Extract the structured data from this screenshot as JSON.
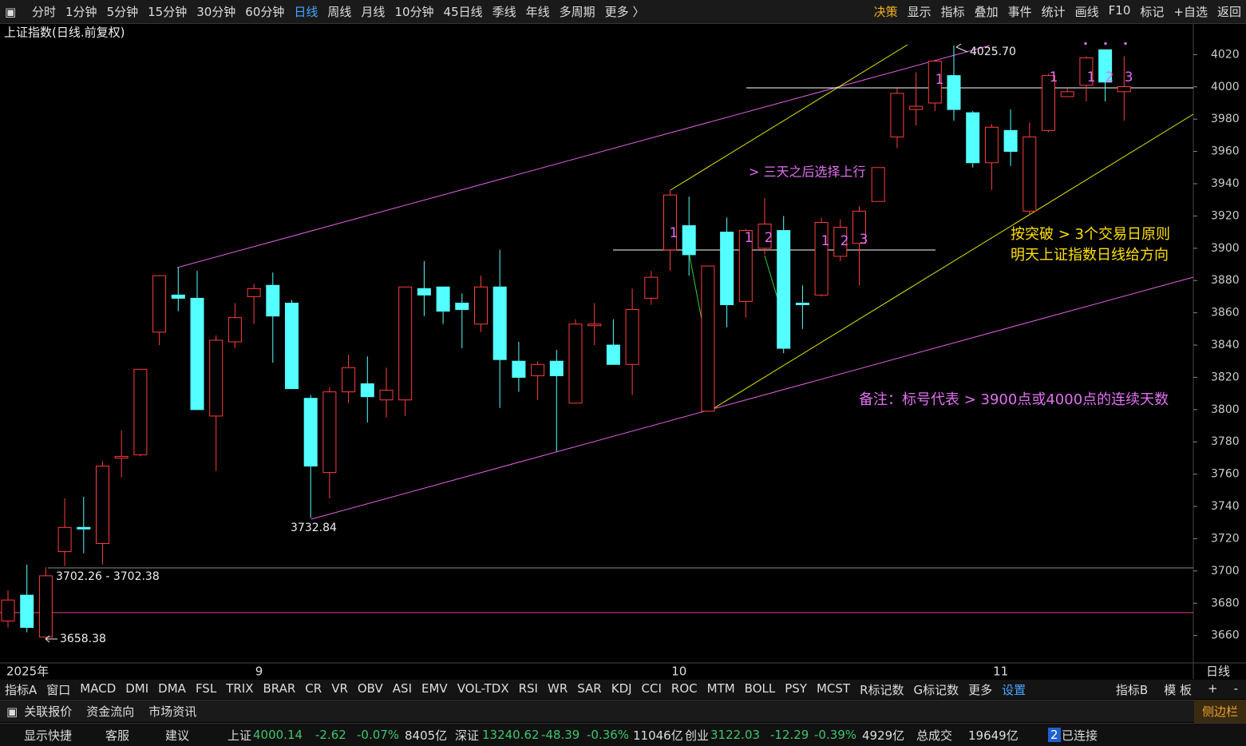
{
  "toolbar": {
    "periods": [
      "分时",
      "1分钟",
      "5分钟",
      "15分钟",
      "30分钟",
      "60分钟",
      "日线",
      "周线",
      "月线",
      "10分钟",
      "45日线",
      "季线",
      "年线",
      "多周期",
      "更多 〉"
    ],
    "right": [
      "决策",
      "显示",
      "指标",
      "叠加",
      "事件",
      "统计",
      "画线",
      "F10",
      "标记",
      "+自选",
      "返回"
    ]
  },
  "chart_header": "上证指数(日线.前复权)",
  "chart_data": {
    "type": "candlestick",
    "axis_label": "日线",
    "categories": [
      "2025年",
      null,
      null,
      null,
      null,
      null,
      null,
      null,
      null,
      null,
      null,
      null,
      null,
      null,
      "9",
      null,
      null,
      null,
      null,
      null,
      null,
      null,
      null,
      null,
      null,
      null,
      null,
      null,
      null,
      null,
      null,
      null,
      null,
      null,
      null,
      null,
      "10",
      null,
      null,
      null,
      null,
      null,
      null,
      null,
      null,
      null,
      null,
      null,
      null,
      null,
      null,
      null,
      null,
      "11",
      null,
      null,
      null,
      null,
      null,
      null
    ],
    "open": [
      3669,
      3685,
      3659,
      3712,
      3727,
      3717,
      3770,
      3772,
      3848,
      3871,
      3869,
      3796,
      3842,
      3870,
      3877,
      3866,
      3807,
      3761,
      3811,
      3816,
      3806,
      3806,
      3875,
      3876,
      3866,
      3853,
      3876,
      3830,
      3821,
      3830,
      3804,
      3852,
      3840,
      3828,
      3869,
      3899,
      3914,
      3799,
      3910,
      3867,
      3900,
      3911,
      3866,
      3871,
      3895,
      3903,
      3929,
      3969,
      3986,
      3990,
      4007,
      3984,
      3953,
      3973,
      3923,
      3973,
      3994,
      4001,
      4023,
      3997
    ],
    "high": [
      3688,
      3704,
      3702.38,
      3745,
      3746,
      3768,
      3787,
      3825,
      3883,
      3888,
      3886,
      3846,
      3866,
      3878,
      3885,
      3868,
      3809,
      3814,
      3834,
      3833,
      3826,
      3876,
      3892,
      3876,
      3872,
      3883,
      3899,
      3842,
      3830,
      3837,
      3856,
      3866,
      3856,
      3875,
      3886,
      3936,
      3932,
      3889,
      3919,
      3912,
      3931,
      3920,
      3877,
      3919,
      3918,
      3926,
      3950,
      3999,
      4009,
      4016,
      4025.7,
      3985,
      3977,
      3986,
      3978,
      4008,
      3999,
      4019,
      4023,
      4019
    ],
    "low": [
      3665,
      3662,
      3658.38,
      3703,
      3711,
      3704,
      3758,
      3771,
      3840,
      3861,
      3800,
      3762,
      3838,
      3853,
      3829,
      3813,
      3732.84,
      3745,
      3804,
      3792,
      3795,
      3796,
      3858,
      3853,
      3838,
      3848,
      3801,
      3811,
      3806,
      3774,
      3804,
      3840,
      3828,
      3809,
      3865,
      3886,
      3883,
      3799,
      3851,
      3857,
      3896,
      3835,
      3850,
      3870,
      3892,
      3877,
      3929,
      3962,
      3976,
      3985,
      3979,
      3950,
      3936,
      3951,
      3921,
      3972,
      3994,
      3991,
      3991,
      3979
    ],
    "close": [
      3682,
      3665,
      3697,
      3727,
      3726,
      3765,
      3771,
      3825,
      3883,
      3869,
      3800,
      3843,
      3857,
      3875,
      3858,
      3813,
      3765,
      3811,
      3826,
      3808,
      3812,
      3876,
      3871,
      3861,
      3862,
      3876,
      3831,
      3820,
      3828,
      3821,
      3853,
      3853,
      3828,
      3862,
      3882,
      3933,
      3896,
      3889,
      3865,
      3911,
      3915,
      3838,
      3865,
      3916,
      3913,
      3923,
      3950,
      3996,
      3988,
      4016,
      3986,
      3953,
      3975,
      3960,
      3969,
      4007,
      3997,
      4018,
      4003,
      4000.14
    ],
    "up_color": "#ff3c3c",
    "down_color": "#54ffff",
    "ylim": [
      3643,
      4039
    ],
    "yticks": [
      3660,
      3680,
      3700,
      3720,
      3740,
      3760,
      3780,
      3800,
      3820,
      3840,
      3860,
      3880,
      3900,
      3920,
      3940,
      3960,
      3980,
      4000,
      4020
    ],
    "price_labels": [
      "4025.70",
      "3732.84",
      "3702.26 - 3702.38",
      "3658.38"
    ],
    "count_marks": [
      "1",
      "1",
      "2",
      "1",
      "2",
      "3",
      "1",
      "1",
      "1",
      "2",
      "3"
    ],
    "annotations": [
      "> 三天之后选择上行",
      "按突破 > 3个交易日原则",
      "明天上证指数日线给方向",
      "备注：标号代表 > 3900点或4000点的连续天数"
    ]
  },
  "indicator_tabs": [
    "指标A",
    "窗口",
    "MACD",
    "DMI",
    "DMA",
    "FSL",
    "TRIX",
    "BRAR",
    "CR",
    "VR",
    "OBV",
    "ASI",
    "EMV",
    "VOL-TDX",
    "RSI",
    "WR",
    "SAR",
    "KDJ",
    "CCI",
    "ROC",
    "MTM",
    "BOLL",
    "PSY",
    "MCST",
    "R标记数",
    "G标记数",
    "更多",
    "设置"
  ],
  "indicator_right": [
    "指标B",
    "模 板",
    "+",
    "-"
  ],
  "info_tabs": [
    "关联报价",
    "资金流向",
    "市场资讯"
  ],
  "sidebar": "侧边栏",
  "status": [
    {
      "text": "显示快捷",
      "color": "#ddd"
    },
    {
      "text": "客服",
      "color": "#ddd"
    },
    {
      "text": "建议",
      "color": "#ddd"
    },
    {
      "text": "上证",
      "color": "#ddd"
    },
    {
      "text": "4000.14",
      "color": "#3ec46d"
    },
    {
      "text": "-2.62",
      "color": "#3ec46d"
    },
    {
      "text": "-0.07%",
      "color": "#3ec46d"
    },
    {
      "text": "8405亿",
      "color": "#ddd"
    },
    {
      "text": "深证",
      "color": "#ddd"
    },
    {
      "text": "13240.62",
      "color": "#3ec46d"
    },
    {
      "text": "-48.39",
      "color": "#3ec46d"
    },
    {
      "text": "-0.36%",
      "color": "#3ec46d"
    },
    {
      "text": "11046亿",
      "color": "#ddd"
    },
    {
      "text": "创业",
      "color": "#ddd"
    },
    {
      "text": "3122.03",
      "color": "#3ec46d"
    },
    {
      "text": "-12.29",
      "color": "#3ec46d"
    },
    {
      "text": "-0.39%",
      "color": "#3ec46d"
    },
    {
      "text": "4929亿",
      "color": "#ddd"
    },
    {
      "text": "总成交",
      "color": "#ddd"
    },
    {
      "text": "19649亿",
      "color": "#ddd"
    },
    {
      "text": "2",
      "color": "#fff"
    },
    {
      "text": "已连接",
      "color": "#ddd"
    }
  ]
}
